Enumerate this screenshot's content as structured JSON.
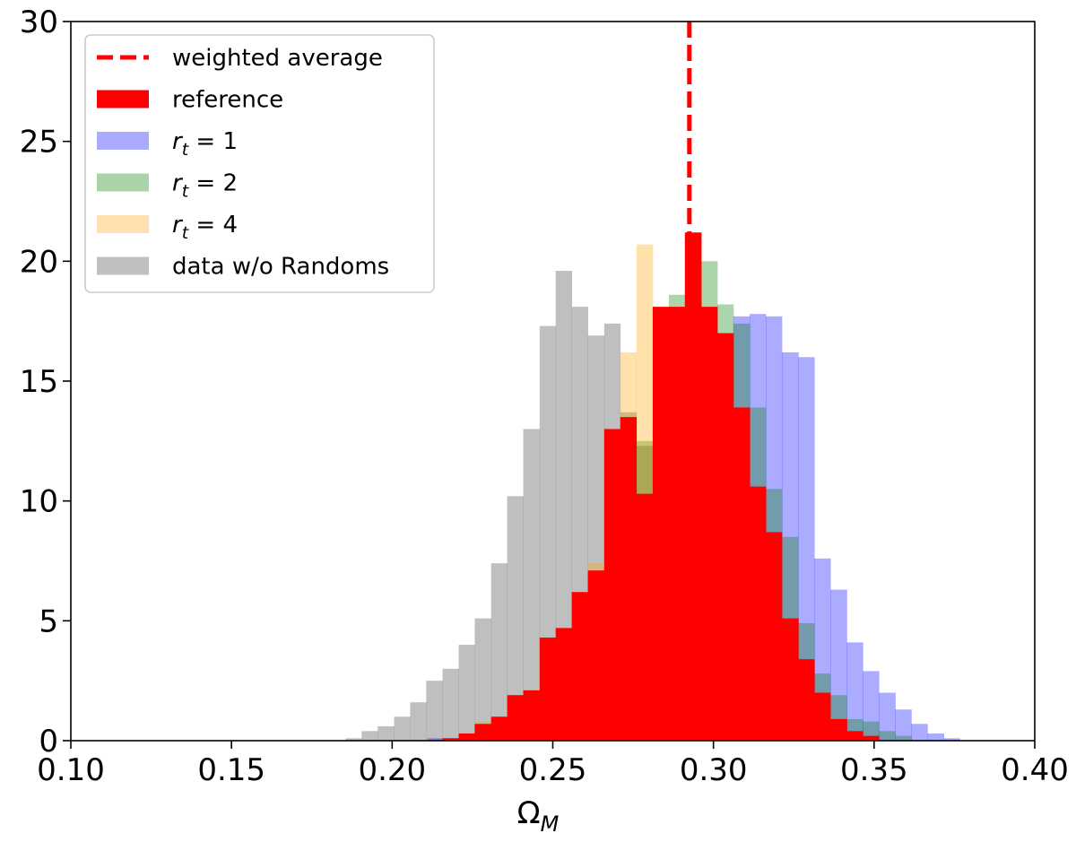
{
  "chart_data": {
    "type": "histogram",
    "title": "",
    "xlabel": "Ω",
    "xlabel_sub": "M",
    "ylabel": "",
    "xlim": [
      0.1,
      0.4
    ],
    "ylim": [
      0,
      30
    ],
    "xticks": [
      "0.10",
      "0.15",
      "0.20",
      "0.25",
      "0.30",
      "0.35",
      "0.40"
    ],
    "yticks": [
      "0",
      "5",
      "10",
      "15",
      "20",
      "25",
      "30"
    ],
    "weighted_average": 0.2925,
    "legend": {
      "placement": "upper-left",
      "entries": [
        {
          "label": "weighted average",
          "color": "#ff0000",
          "style": "dashed-line"
        },
        {
          "label": "reference",
          "color": "#ff0000",
          "style": "patch"
        },
        {
          "label": "r",
          "sub": "t",
          "suffix": " = 1",
          "color": "#aaaaff",
          "style": "patch"
        },
        {
          "label": "r",
          "sub": "t",
          "suffix": " = 2",
          "color": "#a8d4a8",
          "style": "patch"
        },
        {
          "label": "r",
          "sub": "t",
          "suffix": " = 4",
          "color": "#ffe0b0",
          "style": "patch"
        },
        {
          "label": "data w/o Randoms",
          "color": "#c0c0c0",
          "style": "patch"
        }
      ]
    },
    "series": [
      {
        "name": "data w/o Randoms",
        "color": "#808080",
        "opacity": 0.5,
        "bins": [
          [
            0.1855,
            0.1905,
            0.1
          ],
          [
            0.1905,
            0.1955,
            0.4
          ],
          [
            0.1955,
            0.2006,
            0.6
          ],
          [
            0.2006,
            0.2056,
            1.0
          ],
          [
            0.2056,
            0.2106,
            1.6
          ],
          [
            0.2106,
            0.2157,
            2.5
          ],
          [
            0.2157,
            0.2207,
            3.0
          ],
          [
            0.2207,
            0.2257,
            4.0
          ],
          [
            0.2257,
            0.2308,
            5.1
          ],
          [
            0.2308,
            0.2358,
            7.4
          ],
          [
            0.2358,
            0.2408,
            10.2
          ],
          [
            0.2408,
            0.2459,
            13.0
          ],
          [
            0.2459,
            0.2509,
            17.3
          ],
          [
            0.2509,
            0.2559,
            19.6
          ],
          [
            0.2559,
            0.2609,
            18.1
          ],
          [
            0.2609,
            0.266,
            16.9
          ],
          [
            0.266,
            0.271,
            17.4
          ],
          [
            0.271,
            0.276,
            13.7
          ],
          [
            0.276,
            0.2811,
            12.3
          ],
          [
            0.2811,
            0.2861,
            6.9
          ],
          [
            0.2861,
            0.2911,
            5.5
          ],
          [
            0.2911,
            0.2962,
            3.8
          ],
          [
            0.2962,
            0.3012,
            2.1
          ],
          [
            0.3012,
            0.3062,
            1.0
          ],
          [
            0.3062,
            0.3113,
            0.6
          ],
          [
            0.3113,
            0.3163,
            0.3
          ],
          [
            0.3163,
            0.3213,
            0.1
          ]
        ]
      },
      {
        "name": "r_t = 1",
        "color": "#0000ff",
        "opacity": 0.33,
        "bins": [
          [
            0.211,
            0.2157,
            0.1
          ],
          [
            0.2157,
            0.2207,
            0.1
          ],
          [
            0.2207,
            0.2257,
            0.2
          ],
          [
            0.2257,
            0.2308,
            0.5
          ],
          [
            0.2308,
            0.2358,
            0.5
          ],
          [
            0.2358,
            0.2408,
            0.6
          ],
          [
            0.2408,
            0.2459,
            0.8
          ],
          [
            0.2459,
            0.2509,
            1.6
          ],
          [
            0.2509,
            0.2559,
            2.0
          ],
          [
            0.2559,
            0.2609,
            2.4
          ],
          [
            0.2609,
            0.266,
            2.6
          ],
          [
            0.266,
            0.271,
            3.2
          ],
          [
            0.271,
            0.276,
            4.0
          ],
          [
            0.276,
            0.2811,
            5.5
          ],
          [
            0.2811,
            0.2861,
            4.6
          ],
          [
            0.2861,
            0.2911,
            4.9
          ],
          [
            0.2911,
            0.2962,
            8.9
          ],
          [
            0.2962,
            0.3012,
            11.4
          ],
          [
            0.3012,
            0.3062,
            13.5
          ],
          [
            0.3062,
            0.3113,
            17.7
          ],
          [
            0.3113,
            0.3163,
            17.8
          ],
          [
            0.3163,
            0.3213,
            17.7
          ],
          [
            0.3213,
            0.3264,
            16.2
          ],
          [
            0.3264,
            0.3314,
            16.0
          ],
          [
            0.3314,
            0.3364,
            7.6
          ],
          [
            0.3364,
            0.3415,
            6.3
          ],
          [
            0.3415,
            0.3465,
            4.1
          ],
          [
            0.3465,
            0.3515,
            2.9
          ],
          [
            0.3515,
            0.3566,
            2.0
          ],
          [
            0.3566,
            0.3616,
            1.3
          ],
          [
            0.3616,
            0.3666,
            0.7
          ],
          [
            0.3666,
            0.3717,
            0.3
          ],
          [
            0.3717,
            0.3767,
            0.1
          ]
        ]
      },
      {
        "name": "r_t = 2",
        "color": "#008000",
        "opacity": 0.33,
        "bins": [
          [
            0.2157,
            0.2207,
            0.1
          ],
          [
            0.2207,
            0.2257,
            0.2
          ],
          [
            0.2257,
            0.2308,
            0.4
          ],
          [
            0.2308,
            0.2358,
            0.5
          ],
          [
            0.2358,
            0.2408,
            0.9
          ],
          [
            0.2408,
            0.2459,
            1.0
          ],
          [
            0.2459,
            0.2509,
            1.9
          ],
          [
            0.2509,
            0.2559,
            1.7
          ],
          [
            0.2559,
            0.2609,
            2.6
          ],
          [
            0.2609,
            0.266,
            3.5
          ],
          [
            0.266,
            0.271,
            4.3
          ],
          [
            0.271,
            0.276,
            10.2
          ],
          [
            0.276,
            0.2811,
            12.5
          ],
          [
            0.2811,
            0.2861,
            13.1
          ],
          [
            0.2861,
            0.2911,
            18.6
          ],
          [
            0.2911,
            0.2962,
            17.7
          ],
          [
            0.2962,
            0.3012,
            20.0
          ],
          [
            0.3012,
            0.3062,
            18.2
          ],
          [
            0.3062,
            0.3113,
            17.4
          ],
          [
            0.3113,
            0.3163,
            13.9
          ],
          [
            0.3163,
            0.3213,
            10.5
          ],
          [
            0.3213,
            0.3264,
            8.5
          ],
          [
            0.3264,
            0.3314,
            4.9
          ],
          [
            0.3314,
            0.3364,
            2.8
          ],
          [
            0.3364,
            0.3415,
            1.9
          ],
          [
            0.3415,
            0.3465,
            0.9
          ],
          [
            0.3465,
            0.3515,
            0.8
          ],
          [
            0.3515,
            0.3566,
            0.4
          ],
          [
            0.3566,
            0.3616,
            0.2
          ]
        ]
      },
      {
        "name": "r_t = 4",
        "color": "#ffa500",
        "opacity": 0.33,
        "bins": [
          [
            0.2157,
            0.2207,
            0.1
          ],
          [
            0.2207,
            0.2257,
            0.3
          ],
          [
            0.2257,
            0.2308,
            0.8
          ],
          [
            0.2308,
            0.2358,
            0.9
          ],
          [
            0.2358,
            0.2408,
            1.9
          ],
          [
            0.2408,
            0.2459,
            1.8
          ],
          [
            0.2459,
            0.2509,
            2.9
          ],
          [
            0.2509,
            0.2559,
            3.2
          ],
          [
            0.2559,
            0.2609,
            5.8
          ],
          [
            0.2609,
            0.266,
            7.4
          ],
          [
            0.266,
            0.271,
            12.3
          ],
          [
            0.271,
            0.276,
            16.2
          ],
          [
            0.276,
            0.2811,
            20.7
          ],
          [
            0.2811,
            0.2861,
            13.1
          ],
          [
            0.2861,
            0.2911,
            18.1
          ],
          [
            0.2911,
            0.2962,
            17.7
          ],
          [
            0.2962,
            0.3012,
            17.0
          ],
          [
            0.3012,
            0.3062,
            13.9
          ],
          [
            0.3062,
            0.3113,
            10.6
          ],
          [
            0.3113,
            0.3163,
            8.7
          ],
          [
            0.3163,
            0.3213,
            5.3
          ],
          [
            0.3213,
            0.3264,
            3.6
          ],
          [
            0.3264,
            0.3314,
            2.0
          ],
          [
            0.3314,
            0.3364,
            0.9
          ],
          [
            0.3364,
            0.3415,
            0.4
          ],
          [
            0.3415,
            0.3465,
            0.2
          ]
        ]
      },
      {
        "name": "reference",
        "color": "#ff0000",
        "opacity": 1.0,
        "bins": [
          [
            0.2157,
            0.2207,
            0.1
          ],
          [
            0.2207,
            0.2257,
            0.3
          ],
          [
            0.2257,
            0.2308,
            0.7
          ],
          [
            0.2308,
            0.2358,
            1.0
          ],
          [
            0.2358,
            0.2408,
            1.9
          ],
          [
            0.2408,
            0.2459,
            2.1
          ],
          [
            0.2459,
            0.2509,
            4.3
          ],
          [
            0.2509,
            0.2559,
            4.7
          ],
          [
            0.2559,
            0.2609,
            6.2
          ],
          [
            0.2609,
            0.266,
            7.1
          ],
          [
            0.266,
            0.271,
            13.0
          ],
          [
            0.271,
            0.276,
            13.5
          ],
          [
            0.276,
            0.2811,
            10.3
          ],
          [
            0.2811,
            0.2861,
            18.1
          ],
          [
            0.2861,
            0.2911,
            18.1
          ],
          [
            0.2911,
            0.2962,
            21.2
          ],
          [
            0.2962,
            0.3012,
            18.1
          ],
          [
            0.3012,
            0.3062,
            17.0
          ],
          [
            0.3062,
            0.3113,
            13.9
          ],
          [
            0.3113,
            0.3163,
            10.6
          ],
          [
            0.3163,
            0.3213,
            8.7
          ],
          [
            0.3213,
            0.3264,
            5.1
          ],
          [
            0.3264,
            0.3314,
            3.4
          ],
          [
            0.3314,
            0.3364,
            2.0
          ],
          [
            0.3364,
            0.3415,
            0.9
          ],
          [
            0.3415,
            0.3465,
            0.4
          ],
          [
            0.3465,
            0.3515,
            0.2
          ]
        ]
      }
    ]
  }
}
